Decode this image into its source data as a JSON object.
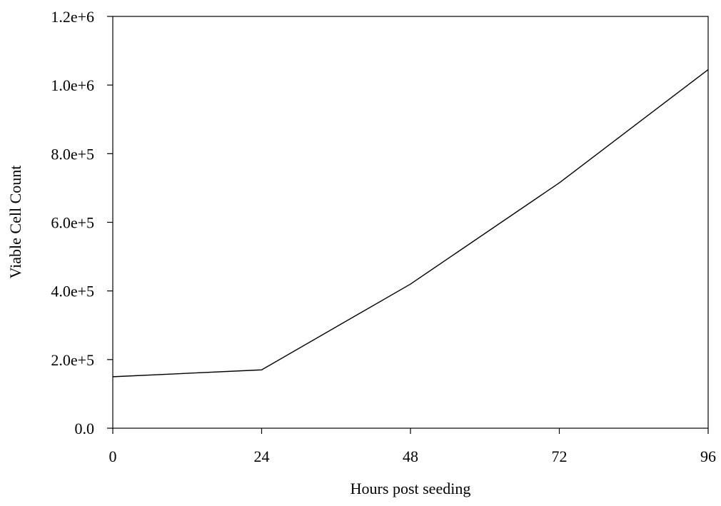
{
  "chart_data": {
    "type": "line",
    "title": "",
    "xlabel": "Hours post seeding",
    "ylabel": "Viable Cell Count",
    "xlim": [
      0,
      96
    ],
    "ylim": [
      0,
      1200000
    ],
    "x_ticks": [
      0,
      24,
      48,
      72,
      96
    ],
    "x_tick_labels": [
      "0",
      "24",
      "48",
      "72",
      "96"
    ],
    "y_ticks": [
      0,
      200000,
      400000,
      600000,
      800000,
      1000000,
      1200000
    ],
    "y_tick_labels": [
      "0.0",
      "2.0e+5",
      "4.0e+5",
      "6.0e+5",
      "8.0e+5",
      "1.0e+6",
      "1.2e+6"
    ],
    "grid": false,
    "legend": "none",
    "series": [
      {
        "color": "#000000",
        "x": [
          0,
          24,
          48,
          72,
          96
        ],
        "y": [
          150000,
          170000,
          420000,
          715000,
          1045000
        ]
      }
    ]
  }
}
